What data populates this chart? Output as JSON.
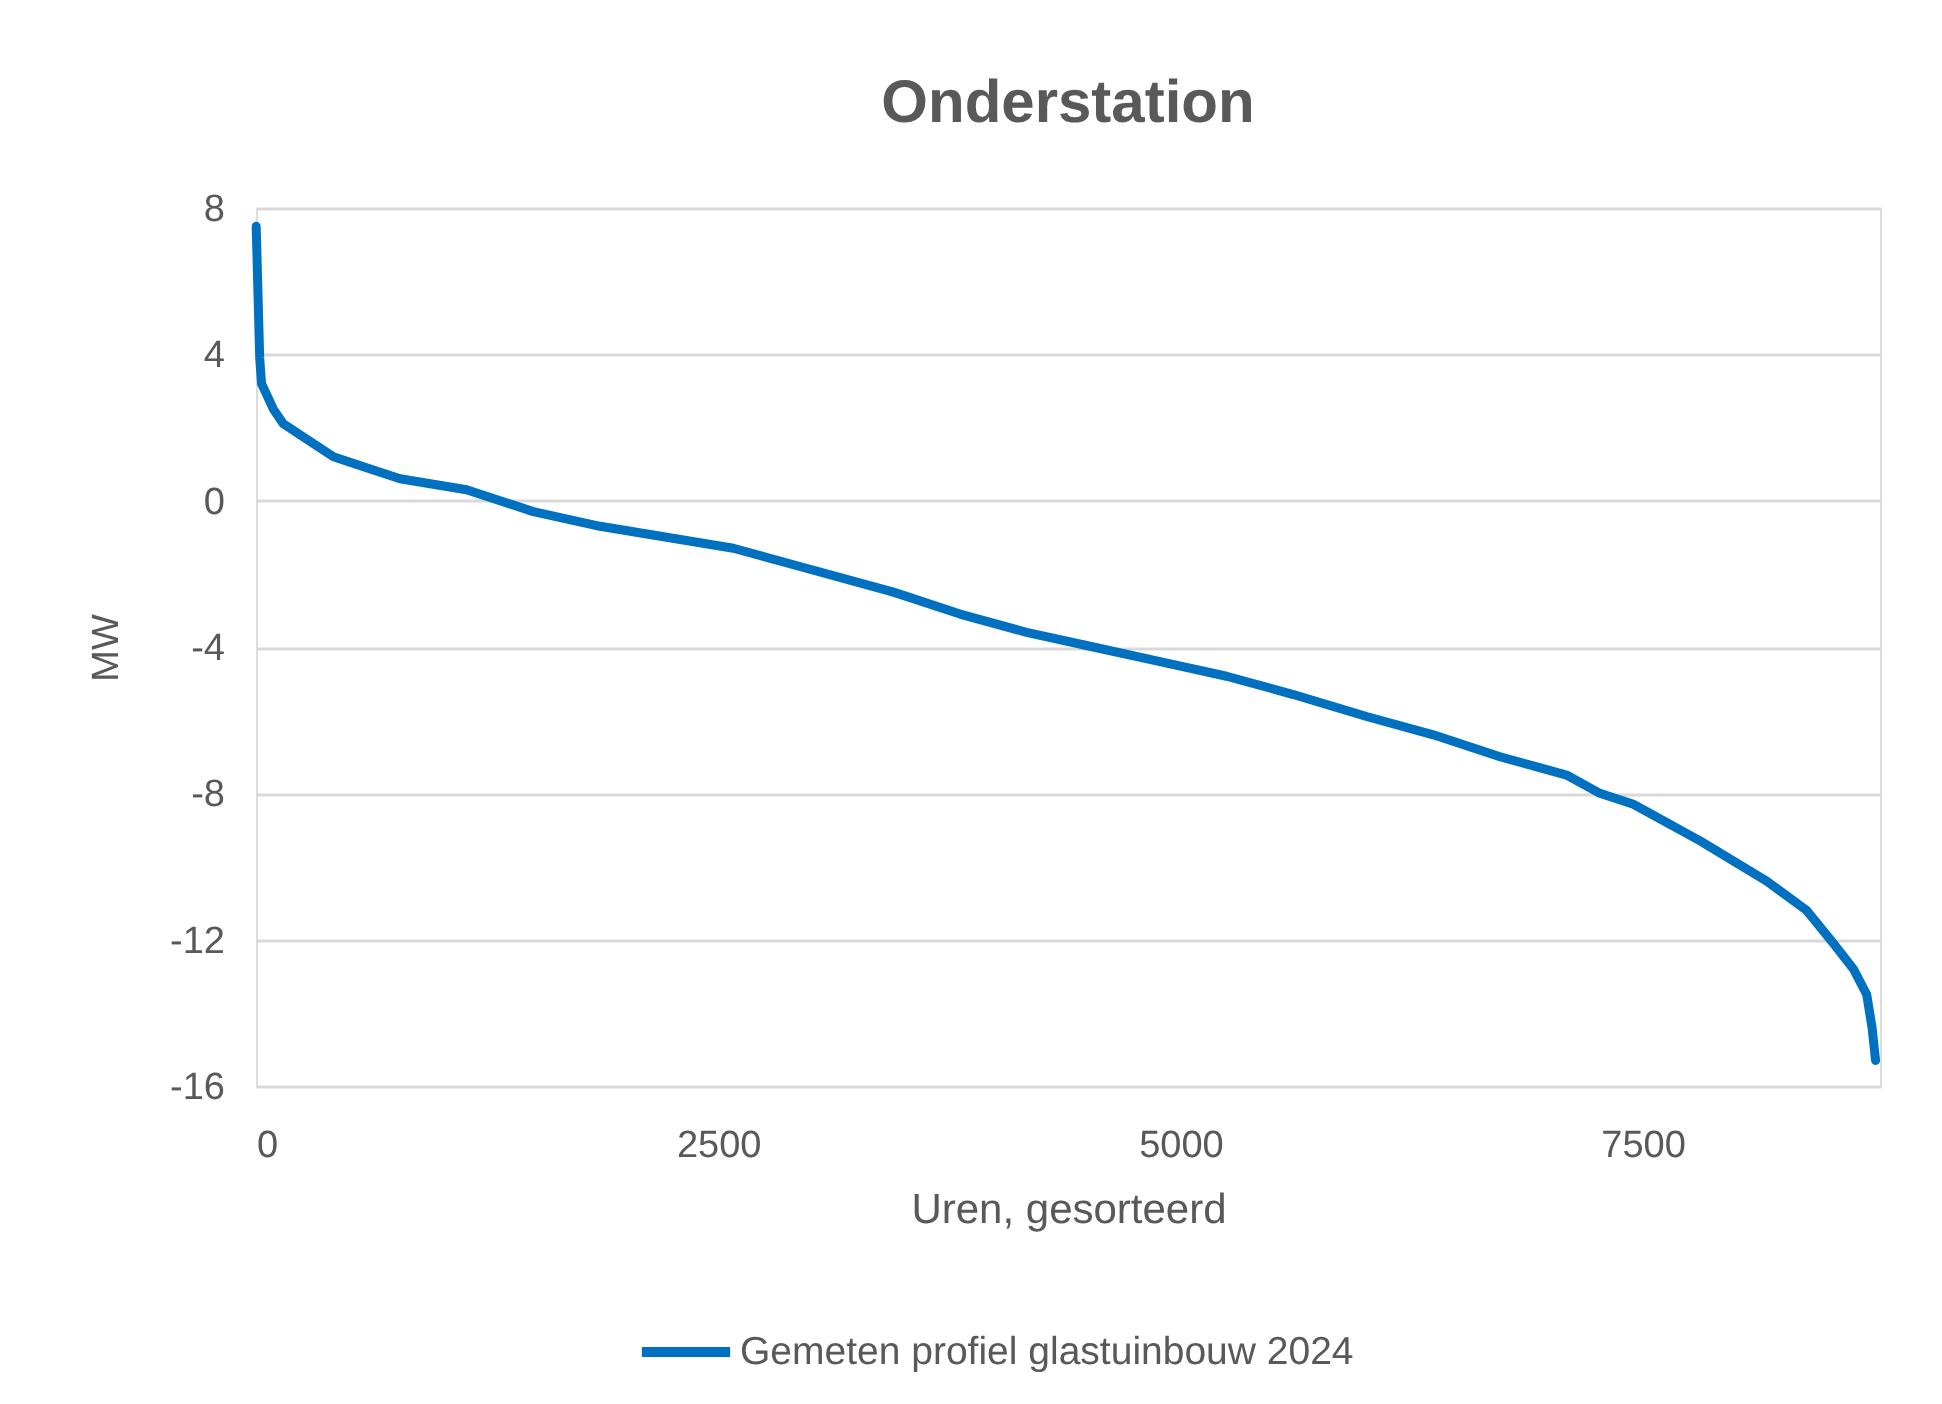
{
  "chart_data": {
    "type": "line",
    "title": "Onderstation",
    "xlabel": "Uren, gesorteerd",
    "ylabel": "MW",
    "x": [
      1,
      20,
      30,
      94,
      148,
      238,
      419,
      598,
      779,
      1139,
      1500,
      1861,
      2221,
      2582,
      2942,
      3448,
      3808,
      4168,
      4529,
      4890,
      5250,
      5611,
      6007,
      6368,
      6729,
      7089,
      7269,
      7450,
      7811,
      8171,
      8387,
      8532,
      8640,
      8712,
      8741,
      8760
    ],
    "series": [
      {
        "name": "Gemeten profiel glastuinbouw 2024",
        "color": "#0070c0",
        "values": [
          7.5,
          3.9,
          3.2,
          2.5,
          2.1,
          1.8,
          1.2,
          0.9,
          0.6,
          0.3,
          -0.3,
          -0.7,
          -1.0,
          -1.3,
          -1.8,
          -2.5,
          -3.1,
          -3.6,
          -4.0,
          -4.4,
          -4.8,
          -5.3,
          -5.9,
          -6.4,
          -7.0,
          -7.5,
          -8.0,
          -8.3,
          -9.3,
          -10.4,
          -11.2,
          -12.1,
          -12.8,
          -13.5,
          -14.4,
          -15.3
        ]
      }
    ],
    "xlim": [
      0,
      8784
    ],
    "xticks": [
      0,
      2500,
      5000,
      7500
    ],
    "ylim": [
      -16,
      8
    ],
    "yticks": [
      -16,
      -12,
      -8,
      -4,
      0,
      4,
      8
    ],
    "grid": "y",
    "legend": "bottom",
    "marker": "none",
    "line_style": "solid"
  }
}
